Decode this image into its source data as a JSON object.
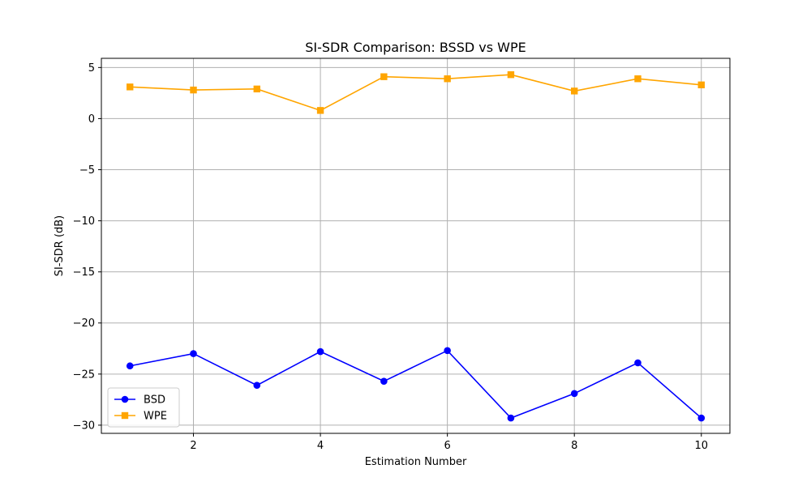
{
  "chart_data": {
    "type": "line",
    "title": "SI-SDR Comparison: BSSD vs WPE",
    "xlabel": "Estimation Number",
    "ylabel": "SI-SDR (dB)",
    "x": [
      1,
      2,
      3,
      4,
      5,
      6,
      7,
      8,
      9,
      10
    ],
    "xlim": [
      0.55,
      10.45
    ],
    "ylim": [
      -30.8,
      5.9
    ],
    "xticks": [
      2,
      4,
      6,
      8,
      10
    ],
    "yticks": [
      5,
      0,
      -5,
      -10,
      -15,
      -20,
      -25,
      -30
    ],
    "xtick_labels": [
      "2",
      "4",
      "6",
      "8",
      "10"
    ],
    "ytick_labels": [
      "5",
      "0",
      "−5",
      "−10",
      "−15",
      "−20",
      "−25",
      "−30"
    ],
    "grid": true,
    "legend_position": "lower-left",
    "series": [
      {
        "name": "BSD",
        "color": "#0000ff",
        "marker": "circle",
        "values": [
          -24.2,
          -23.0,
          -26.1,
          -22.8,
          -25.7,
          -22.7,
          -29.3,
          -26.9,
          -23.9,
          -29.3
        ]
      },
      {
        "name": "WPE",
        "color": "#ffa500",
        "marker": "square",
        "values": [
          3.1,
          2.8,
          2.9,
          0.8,
          4.1,
          3.9,
          4.3,
          2.7,
          3.9,
          3.3
        ]
      }
    ]
  }
}
